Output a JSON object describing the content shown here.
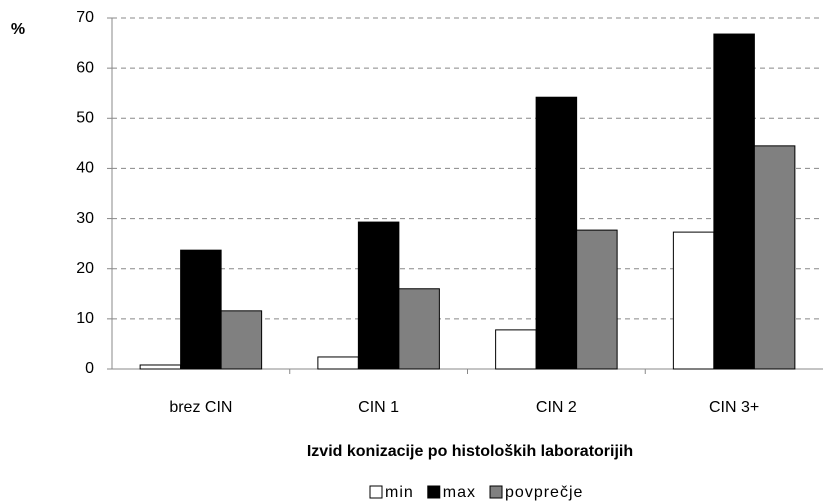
{
  "chart_data": {
    "type": "bar",
    "y_label": "%",
    "x_label": "Izvid konizacije po histoloških laboratorijih",
    "categories": [
      "brez CIN",
      "CIN 1",
      "CIN 2",
      "CIN 3+"
    ],
    "series": [
      {
        "name": "min",
        "color": "#ffffff",
        "values": [
          0.8,
          2.4,
          7.8,
          27.3
        ]
      },
      {
        "name": "max",
        "color": "#000000",
        "values": [
          23.7,
          29.3,
          54.2,
          66.8
        ]
      },
      {
        "name": "povprečje",
        "color": "#808080",
        "values": [
          11.6,
          16.0,
          27.7,
          44.5
        ]
      }
    ],
    "ylim": [
      0,
      70
    ],
    "yticks": [
      0,
      10,
      20,
      30,
      40,
      50,
      60,
      70
    ],
    "grid": true,
    "legend": "bottom"
  }
}
